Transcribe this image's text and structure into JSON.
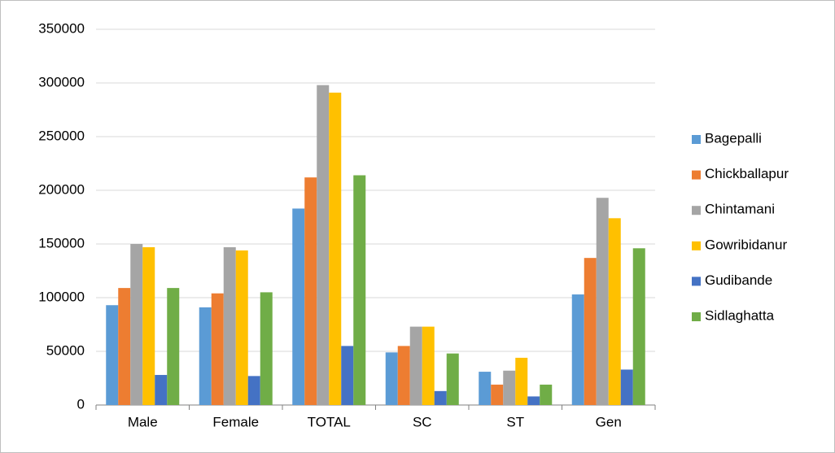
{
  "chart_data": {
    "type": "bar",
    "categories": [
      "Male",
      "Female",
      "TOTAL",
      "SC",
      "ST",
      "Gen"
    ],
    "series": [
      {
        "name": "Bagepalli",
        "color": "#5b9bd5",
        "values": [
          93000,
          91000,
          183000,
          49000,
          31000,
          103000
        ]
      },
      {
        "name": "Chickballapur",
        "color": "#ed7d31",
        "values": [
          109000,
          104000,
          212000,
          55000,
          19000,
          137000
        ]
      },
      {
        "name": "Chintamani",
        "color": "#a5a5a5",
        "values": [
          150000,
          147000,
          298000,
          73000,
          32000,
          193000
        ]
      },
      {
        "name": "Gowribidanur",
        "color": "#ffc000",
        "values": [
          147000,
          144000,
          291000,
          73000,
          44000,
          174000
        ]
      },
      {
        "name": "Gudibande",
        "color": "#4472c4",
        "values": [
          28000,
          27000,
          55000,
          13000,
          8000,
          33000
        ]
      },
      {
        "name": "Sidlaghatta",
        "color": "#70ad47",
        "values": [
          109000,
          105000,
          214000,
          48000,
          19000,
          146000
        ]
      }
    ],
    "ylim": [
      0,
      350000
    ],
    "yticks": [
      0,
      50000,
      100000,
      150000,
      200000,
      250000,
      300000,
      350000
    ],
    "grid": true,
    "legend": "right"
  }
}
